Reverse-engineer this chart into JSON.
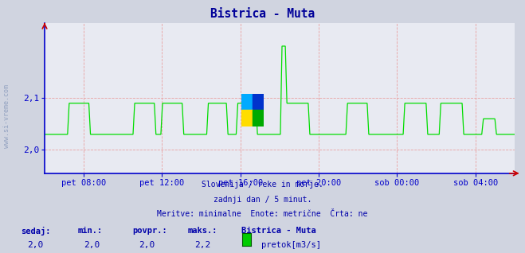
{
  "title": "Bistrica - Muta",
  "title_color": "#000099",
  "bg_color": "#d0d4e0",
  "plot_bg_color": "#e8eaf2",
  "line_color": "#00dd00",
  "axis_color": "#0000cc",
  "grid_color": "#e8a0a0",
  "ylabel_text": "www.si-vreme.com",
  "ylim": [
    1.955,
    2.245
  ],
  "yticks": [
    2.0,
    2.1
  ],
  "footer_lines": [
    "Slovenija / reke in morje.",
    "zadnji dan / 5 minut.",
    "Meritve: minimalne  Enote: metrične  Črta: ne"
  ],
  "footer_color": "#0000aa",
  "stats_labels": [
    "sedaj:",
    "min.:",
    "povpr.:",
    "maks.:"
  ],
  "stats_values": [
    "2,0",
    "2,0",
    "2,0",
    "2,2"
  ],
  "legend_label": "Bistrica - Muta",
  "legend_sublabel": "pretok[m3/s]",
  "legend_color": "#00cc00",
  "xtick_labels": [
    "pet 08:00",
    "pet 12:00",
    "pet 16:00",
    "pet 20:00",
    "sob 00:00",
    "sob 04:00"
  ],
  "xtick_pos_frac": [
    0.0833,
    0.25,
    0.4167,
    0.5833,
    0.75,
    0.9167
  ],
  "num_points": 288,
  "spike_index": 168
}
